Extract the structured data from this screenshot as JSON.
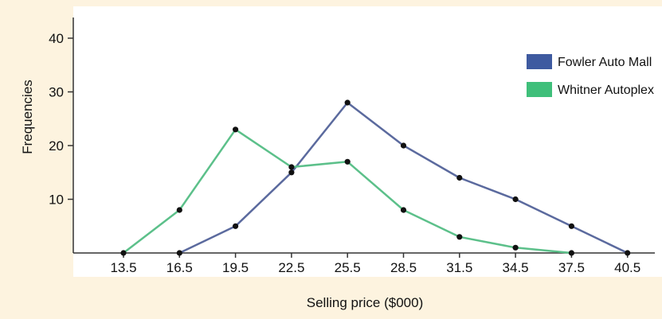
{
  "chart_data": {
    "type": "line",
    "title": "",
    "xlabel": "Selling price ($000)",
    "ylabel": "Frequencies",
    "x": [
      13.5,
      16.5,
      19.5,
      22.5,
      25.5,
      28.5,
      31.5,
      34.5,
      37.5,
      40.5
    ],
    "x_tick_labels": [
      "13.5",
      "16.5",
      "19.5",
      "22.5",
      "25.5",
      "28.5",
      "31.5",
      "34.5",
      "37.5",
      "40.5"
    ],
    "y_ticks": [
      10,
      20,
      30,
      40
    ],
    "y_tick_labels": [
      "10",
      "20",
      "30",
      "40"
    ],
    "ylim": [
      0,
      40
    ],
    "grid": false,
    "legend_position": "top-right",
    "series": [
      {
        "name": "Fowler Auto Mall",
        "color": "#5b6a9e",
        "swatch_color": "#3e5aa0",
        "x": [
          16.5,
          19.5,
          22.5,
          25.5,
          28.5,
          31.5,
          34.5,
          37.5,
          40.5
        ],
        "values": [
          0,
          5,
          15,
          28,
          20,
          14,
          10,
          5,
          0
        ]
      },
      {
        "name": "Whitner Autoplex",
        "color": "#5cc08a",
        "swatch_color": "#3fbf7a",
        "x": [
          13.5,
          16.5,
          19.5,
          22.5,
          25.5,
          28.5,
          31.5,
          34.5,
          37.5
        ],
        "values": [
          0,
          8,
          23,
          16,
          17,
          8,
          3,
          1,
          0
        ]
      }
    ],
    "colors": {
      "background": "#fdf3df",
      "plot_background": "#ffffff",
      "axis": "#333333",
      "marker": "#111111"
    }
  }
}
